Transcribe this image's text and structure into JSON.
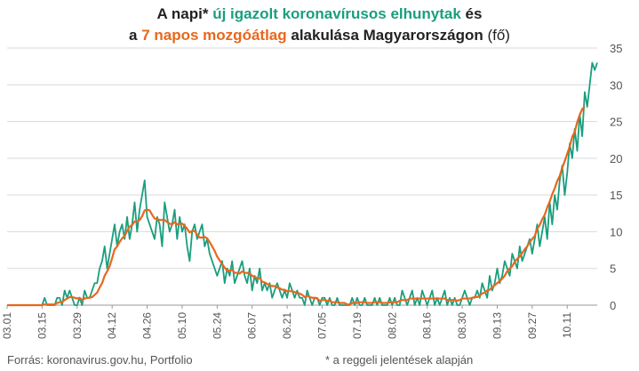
{
  "title": {
    "line1_a": "A napi* ",
    "line1_b": "új igazolt koronavírusos elhunytak",
    "line1_c": " és",
    "line2_a": "a ",
    "line2_b": "7 napos mozgóátlag",
    "line2_c": " alakulása Magyarországon",
    "line2_d": " (fő)"
  },
  "source": "Forrás: koronavirus.gov.hu, Portfolio",
  "footnote": "* a reggeli jelentések alapján",
  "colors": {
    "daily": "#1a9e7e",
    "average": "#e8671c",
    "grid": "#d9d9d9",
    "text": "#555555"
  },
  "chart_data": {
    "type": "line",
    "x_start": "2020-03-01",
    "x_ticks": [
      "03.01",
      "03.15",
      "03.29",
      "04.12",
      "04.26",
      "05.10",
      "05.24",
      "06.07",
      "06.21",
      "07.05",
      "07.19",
      "08.02",
      "08.16",
      "08.30",
      "09.13",
      "09.27",
      "10.11"
    ],
    "ylim": [
      0,
      35
    ],
    "y_ticks": [
      0,
      5,
      10,
      15,
      20,
      25,
      30,
      35
    ],
    "y_axis_position": "right",
    "grid": "horizontal",
    "series": [
      {
        "name": "új igazolt koronavírusos elhunytak",
        "values": [
          0,
          0,
          0,
          0,
          0,
          0,
          0,
          0,
          0,
          0,
          0,
          0,
          0,
          0,
          0,
          1,
          0,
          0,
          0,
          0,
          1,
          1,
          0,
          2,
          1,
          2,
          1,
          0,
          0,
          1,
          0,
          2,
          1,
          1,
          2,
          3,
          3,
          5,
          6,
          8,
          5,
          7,
          9,
          11,
          8,
          10,
          11,
          9,
          12,
          9,
          11,
          14,
          10,
          13,
          15,
          17,
          12,
          11,
          10,
          9,
          12,
          11,
          8,
          14,
          12,
          10,
          11,
          13,
          9,
          12,
          10,
          11,
          8,
          6,
          10,
          11,
          9,
          10,
          11,
          8,
          9,
          7,
          6,
          5,
          4,
          5,
          6,
          3,
          5,
          4,
          6,
          3,
          4,
          5,
          6,
          4,
          3,
          5,
          2,
          4,
          3,
          5,
          2,
          3,
          2,
          3,
          1,
          2,
          3,
          2,
          1,
          2,
          1,
          3,
          2,
          1,
          2,
          1,
          1,
          0,
          2,
          1,
          0,
          1,
          1,
          0,
          1,
          1,
          0,
          1,
          0,
          0,
          1,
          0,
          0,
          0,
          0,
          0,
          1,
          0,
          1,
          0,
          0,
          1,
          0,
          0,
          0,
          1,
          0,
          1,
          0,
          0,
          0,
          1,
          0,
          1,
          0,
          0,
          2,
          1,
          0,
          1,
          2,
          0,
          1,
          0,
          2,
          1,
          0,
          1,
          2,
          0,
          1,
          0,
          1,
          2,
          0,
          1,
          0,
          1,
          0,
          0,
          1,
          2,
          1,
          0,
          1,
          1,
          2,
          1,
          3,
          2,
          1,
          4,
          2,
          3,
          5,
          3,
          4,
          6,
          5,
          4,
          7,
          6,
          5,
          8,
          6,
          7,
          8,
          9,
          7,
          9,
          11,
          8,
          10,
          12,
          9,
          14,
          11,
          15,
          13,
          17,
          19,
          15,
          18,
          22,
          20,
          24,
          21,
          26,
          23,
          29,
          27,
          30,
          33,
          32,
          33
        ],
        "color": "#1a9e7e"
      },
      {
        "name": "7 napos mozgóátlag",
        "values": [
          0,
          0,
          0,
          0,
          0,
          0,
          0,
          0,
          0,
          0,
          0,
          0,
          0,
          0,
          0,
          0.1,
          0.1,
          0.1,
          0.1,
          0.1,
          0.3,
          0.4,
          0.4,
          0.7,
          0.9,
          1.1,
          1.1,
          1,
          0.9,
          1,
          0.7,
          0.9,
          1,
          1,
          1.1,
          1.4,
          1.7,
          2.4,
          3,
          4,
          4.6,
          5.3,
          6.4,
          7.6,
          8,
          8.6,
          9.1,
          9.4,
          10.1,
          10.7,
          10.9,
          11.4,
          11.4,
          11.6,
          12.1,
          12.9,
          13,
          12.9,
          12.3,
          11.8,
          11.7,
          11.6,
          11.6,
          11.6,
          11.3,
          11.1,
          11,
          11.3,
          11,
          11.1,
          11.1,
          10.8,
          10.4,
          9.9,
          10.1,
          10.1,
          9.6,
          9.2,
          9.2,
          9.3,
          9.1,
          8.6,
          8,
          7.4,
          6.6,
          6.1,
          5.6,
          5.1,
          4.7,
          4.7,
          4.8,
          4.4,
          4.4,
          4.3,
          4.6,
          4.4,
          4.4,
          4.3,
          4,
          3.8,
          3.7,
          3.7,
          3.2,
          3.1,
          2.9,
          2.7,
          2.6,
          2.6,
          2.4,
          2.3,
          2.1,
          2.1,
          1.9,
          1.9,
          1.9,
          1.8,
          1.6,
          1.6,
          1.4,
          1.1,
          1.3,
          1.1,
          1,
          1,
          0.9,
          0.6,
          0.7,
          0.7,
          0.6,
          0.6,
          0.4,
          0.4,
          0.4,
          0.3,
          0.3,
          0.3,
          0.1,
          0.1,
          0.3,
          0.3,
          0.3,
          0.4,
          0.4,
          0.4,
          0.3,
          0.3,
          0.3,
          0.4,
          0.4,
          0.4,
          0.3,
          0.3,
          0.3,
          0.4,
          0.4,
          0.4,
          0.4,
          0.6,
          0.7,
          0.7,
          0.7,
          0.9,
          0.9,
          0.9,
          0.9,
          0.9,
          0.9,
          0.9,
          0.9,
          0.9,
          0.9,
          0.9,
          0.9,
          0.9,
          0.9,
          0.9,
          0.7,
          0.7,
          0.7,
          0.7,
          0.6,
          0.7,
          0.9,
          0.9,
          0.9,
          0.9,
          1,
          1.1,
          1.1,
          1.3,
          1.6,
          1.7,
          2,
          2.1,
          2.4,
          2.7,
          3,
          3.3,
          3.6,
          4,
          4.6,
          5,
          5.3,
          5.9,
          6.3,
          6.6,
          7.1,
          7.6,
          8,
          8.6,
          9,
          9.4,
          10.4,
          10.9,
          11.7,
          12.3,
          13.3,
          14.1,
          15.1,
          15.9,
          16.9,
          17.6,
          18.7,
          19.6,
          20.6,
          21.6,
          22.9,
          23.6,
          24.9,
          25.9,
          26.7,
          27
        ],
        "color": "#e8671c"
      }
    ]
  }
}
